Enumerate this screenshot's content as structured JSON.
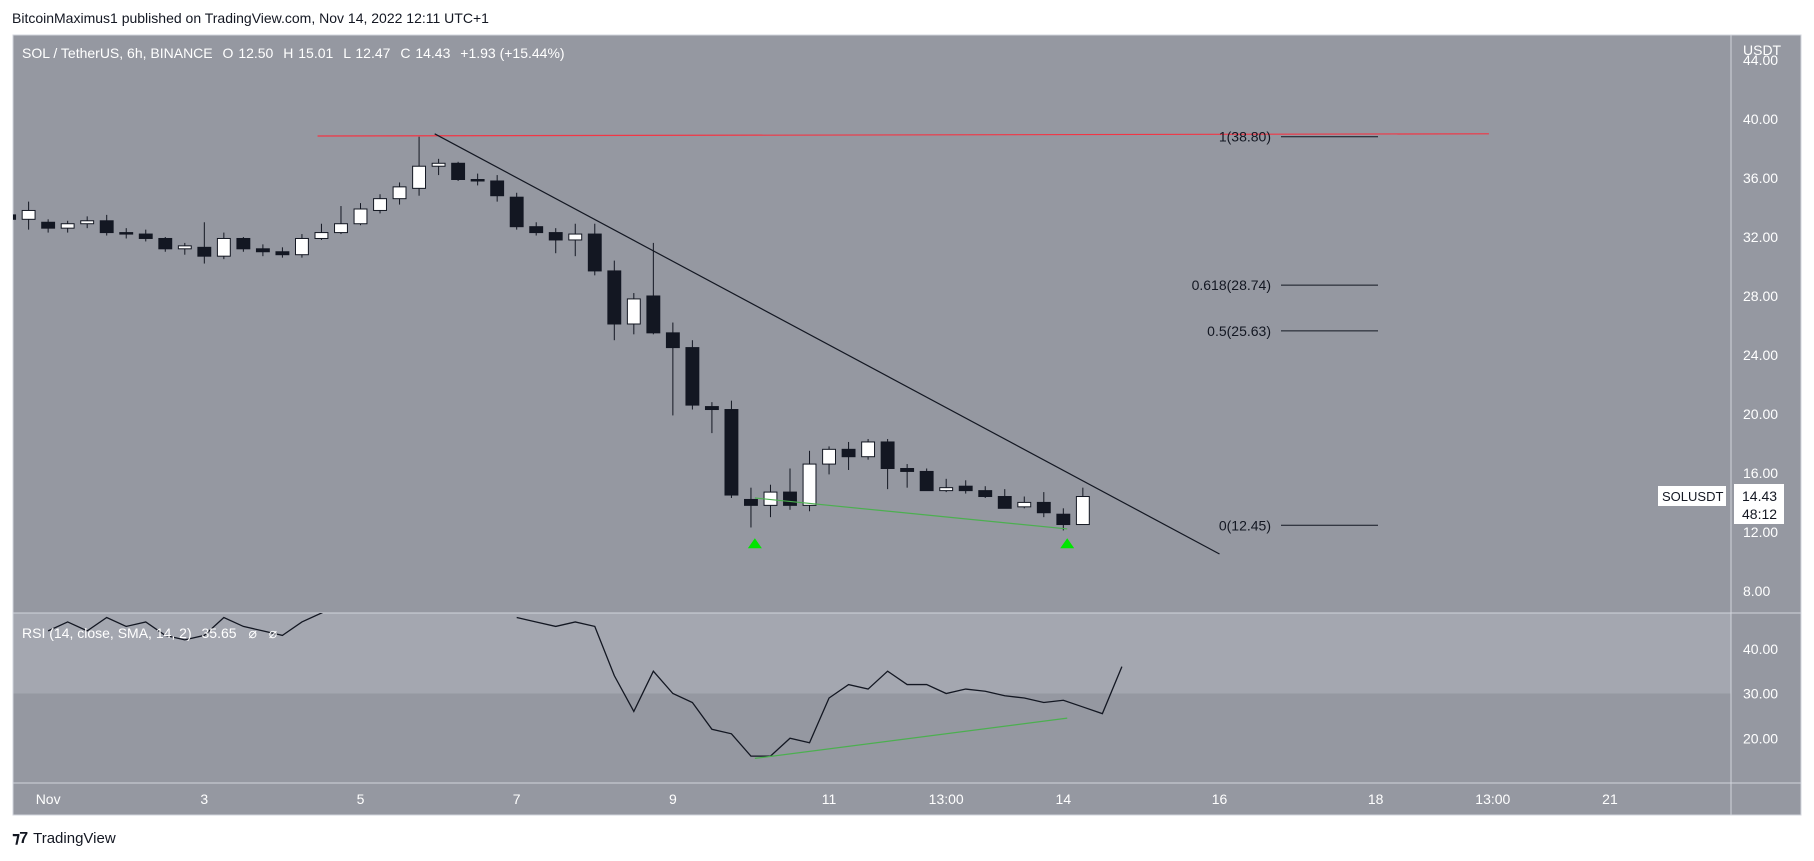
{
  "header": {
    "caption": "BitcoinMaximus1 published on TradingView.com, Nov 14, 2022 12:11 UTC+1"
  },
  "footer": {
    "brand": "TradingView"
  },
  "legend": {
    "symbol": "SOL / TetherUS, 6h, BINANCE",
    "o_label": "O",
    "o_value": "12.50",
    "h_label": "H",
    "h_value": "15.01",
    "l_label": "L",
    "l_value": "12.47",
    "c_label": "C",
    "c_value": "14.43",
    "change": "+1.93 (+15.44%)"
  },
  "rsi_legend": {
    "text": "RSI (14, close, SMA, 14, 2)",
    "value": "35.65",
    "extra1": "⌀",
    "extra2": "⌀"
  },
  "price_badge": {
    "symbol": "SOLUSDT",
    "price": "14.43",
    "countdown": "48:12"
  },
  "colors": {
    "pane_bg": "#9598a1",
    "rsi_band": "#a4a7b0",
    "bull": "#ffffff",
    "bear": "#131722",
    "resistance": "#f23645",
    "trendline": "#131722",
    "support": "#4caf50",
    "marker": "#00e600"
  },
  "chart_data": {
    "type": "candlestick",
    "currency": "USDT",
    "price_axis_ticks": [
      "44.00",
      "40.00",
      "36.00",
      "32.00",
      "28.00",
      "24.00",
      "20.00",
      "16.00",
      "12.00",
      "8.00"
    ],
    "price_range": [
      6.5,
      45.7
    ],
    "rsi_axis_ticks": [
      "40.00",
      "30.00",
      "20.00"
    ],
    "rsi_range": [
      10,
      48
    ],
    "rsi_band": [
      30,
      70
    ],
    "time_axis_ticks": [
      "Nov",
      "3",
      "5",
      "7",
      "9",
      "11",
      "13:00",
      "14",
      "16",
      "18",
      "13:00",
      "21"
    ],
    "time_tick_days": [
      1,
      3,
      5,
      7,
      9,
      11,
      12.5,
      14,
      16,
      18,
      19.5,
      21
    ],
    "day_range": [
      0.55,
      22.55
    ],
    "candles": [
      [
        0.5,
        33.5,
        34.2,
        32.9,
        33.2
      ],
      [
        0.75,
        33.2,
        34.4,
        32.5,
        33.8
      ],
      [
        1.0,
        33.0,
        33.2,
        32.3,
        32.6
      ],
      [
        1.25,
        32.6,
        33.1,
        32.3,
        32.9
      ],
      [
        1.5,
        32.9,
        33.4,
        32.6,
        33.1
      ],
      [
        1.75,
        33.1,
        33.5,
        32.1,
        32.3
      ],
      [
        2.0,
        32.3,
        32.6,
        31.9,
        32.2
      ],
      [
        2.25,
        32.2,
        32.5,
        31.7,
        31.9
      ],
      [
        2.5,
        31.9,
        32.0,
        31.0,
        31.2
      ],
      [
        2.75,
        31.2,
        31.6,
        30.8,
        31.4
      ],
      [
        3.0,
        31.3,
        33.0,
        30.2,
        30.7
      ],
      [
        3.25,
        30.7,
        32.3,
        30.5,
        31.9
      ],
      [
        3.5,
        31.9,
        32.0,
        31.0,
        31.2
      ],
      [
        3.75,
        31.2,
        31.5,
        30.7,
        31.0
      ],
      [
        4.0,
        31.0,
        31.3,
        30.6,
        30.8
      ],
      [
        4.25,
        30.8,
        32.2,
        30.6,
        31.9
      ],
      [
        4.5,
        31.9,
        32.9,
        31.8,
        32.3
      ],
      [
        4.75,
        32.3,
        34.1,
        32.2,
        32.9
      ],
      [
        5.0,
        32.9,
        34.3,
        32.8,
        33.9
      ],
      [
        5.25,
        33.8,
        34.9,
        33.6,
        34.6
      ],
      [
        5.5,
        34.6,
        35.7,
        34.2,
        35.4
      ],
      [
        5.75,
        35.3,
        38.8,
        34.8,
        36.8
      ],
      [
        6.0,
        36.8,
        37.3,
        36.2,
        37.0
      ],
      [
        6.25,
        37.0,
        37.1,
        35.8,
        35.9
      ],
      [
        6.5,
        35.9,
        36.3,
        35.5,
        35.8
      ],
      [
        6.75,
        35.8,
        36.2,
        34.4,
        34.8
      ],
      [
        7.0,
        34.7,
        35.0,
        32.5,
        32.7
      ],
      [
        7.25,
        32.7,
        33.0,
        32.1,
        32.3
      ],
      [
        7.5,
        32.3,
        32.6,
        30.9,
        31.8
      ],
      [
        7.75,
        31.8,
        32.9,
        30.7,
        32.2
      ],
      [
        8.0,
        32.2,
        32.9,
        29.4,
        29.7
      ],
      [
        8.25,
        29.7,
        30.4,
        25.0,
        26.1
      ],
      [
        8.5,
        26.1,
        28.2,
        25.4,
        27.8
      ],
      [
        8.75,
        28.0,
        31.6,
        25.4,
        25.5
      ],
      [
        9.0,
        25.5,
        26.2,
        19.9,
        24.5
      ],
      [
        9.25,
        24.5,
        25.0,
        20.3,
        20.6
      ],
      [
        9.5,
        20.5,
        20.8,
        18.7,
        20.3
      ],
      [
        9.75,
        20.3,
        20.9,
        14.3,
        14.5
      ],
      [
        10.0,
        14.2,
        15.0,
        12.3,
        13.8
      ],
      [
        10.25,
        13.8,
        15.2,
        13.0,
        14.7
      ],
      [
        10.5,
        14.7,
        16.3,
        13.5,
        13.8
      ],
      [
        10.75,
        13.8,
        17.5,
        13.4,
        16.6
      ],
      [
        11.0,
        16.6,
        17.8,
        15.9,
        17.6
      ],
      [
        11.25,
        17.6,
        18.1,
        16.2,
        17.1
      ],
      [
        11.5,
        17.1,
        18.3,
        16.9,
        18.1
      ],
      [
        11.75,
        18.1,
        18.3,
        14.9,
        16.3
      ],
      [
        12.0,
        16.3,
        16.6,
        15.0,
        16.1
      ],
      [
        12.25,
        16.1,
        16.3,
        14.9,
        14.8
      ],
      [
        12.5,
        14.8,
        15.6,
        14.7,
        15.0
      ],
      [
        12.75,
        15.1,
        15.5,
        14.6,
        14.8
      ],
      [
        13.0,
        14.8,
        15.1,
        14.3,
        14.4
      ],
      [
        13.25,
        14.4,
        14.9,
        13.7,
        13.6
      ],
      [
        13.5,
        13.7,
        14.4,
        13.6,
        14.0
      ],
      [
        13.75,
        14.0,
        14.7,
        13.0,
        13.3
      ],
      [
        14.0,
        13.2,
        13.6,
        12.1,
        12.5
      ],
      [
        14.25,
        12.5,
        15.0,
        12.5,
        14.4
      ]
    ],
    "rsi": [
      [
        1.0,
        44
      ],
      [
        1.25,
        46
      ],
      [
        1.5,
        44
      ],
      [
        1.75,
        47
      ],
      [
        2.0,
        45
      ],
      [
        2.25,
        46
      ],
      [
        2.5,
        43
      ],
      [
        2.75,
        42
      ],
      [
        3.0,
        43
      ],
      [
        3.25,
        47
      ],
      [
        3.5,
        45
      ],
      [
        3.75,
        44
      ],
      [
        4.0,
        43
      ],
      [
        4.25,
        46
      ],
      [
        4.5,
        48
      ],
      [
        4.75,
        50
      ],
      [
        7.0,
        47
      ],
      [
        7.25,
        46
      ],
      [
        7.5,
        45
      ],
      [
        7.75,
        46
      ],
      [
        8.0,
        45
      ],
      [
        8.25,
        34
      ],
      [
        8.5,
        26
      ],
      [
        8.75,
        35
      ],
      [
        9.0,
        30
      ],
      [
        9.25,
        28
      ],
      [
        9.5,
        22
      ],
      [
        9.75,
        21
      ],
      [
        10.0,
        16
      ],
      [
        10.25,
        16
      ],
      [
        10.5,
        20
      ],
      [
        10.75,
        19
      ],
      [
        11.0,
        29
      ],
      [
        11.25,
        32
      ],
      [
        11.5,
        31
      ],
      [
        11.75,
        35
      ],
      [
        12.0,
        32
      ],
      [
        12.25,
        32
      ],
      [
        12.5,
        30
      ],
      [
        12.75,
        31
      ],
      [
        13.0,
        30.5
      ],
      [
        13.25,
        29.5
      ],
      [
        13.5,
        29
      ],
      [
        13.75,
        28
      ],
      [
        14.0,
        28.5
      ],
      [
        14.25,
        27
      ],
      [
        14.5,
        25.5
      ],
      [
        14.75,
        36
      ]
    ],
    "annotations": {
      "fib_levels": [
        {
          "label": "1(38.80)",
          "price": 38.8
        },
        {
          "label": "0.618(28.74)",
          "price": 28.74
        },
        {
          "label": "0.5(25.63)",
          "price": 25.63
        },
        {
          "label": "0(12.45)",
          "price": 12.45
        }
      ],
      "resistance_line": {
        "from": [
          4.45,
          38.85
        ],
        "to": [
          19.45,
          39.0
        ]
      },
      "descending_trendline": {
        "from": [
          5.95,
          39.0
        ],
        "to": [
          16.0,
          10.5
        ]
      },
      "price_support_line": {
        "from": [
          10.05,
          14.3
        ],
        "to": [
          14.05,
          12.2
        ]
      },
      "rsi_support_line": {
        "from": [
          10.05,
          15.5
        ],
        "to": [
          14.05,
          24.5
        ]
      },
      "bullish_markers": [
        10.05,
        14.05
      ]
    }
  }
}
